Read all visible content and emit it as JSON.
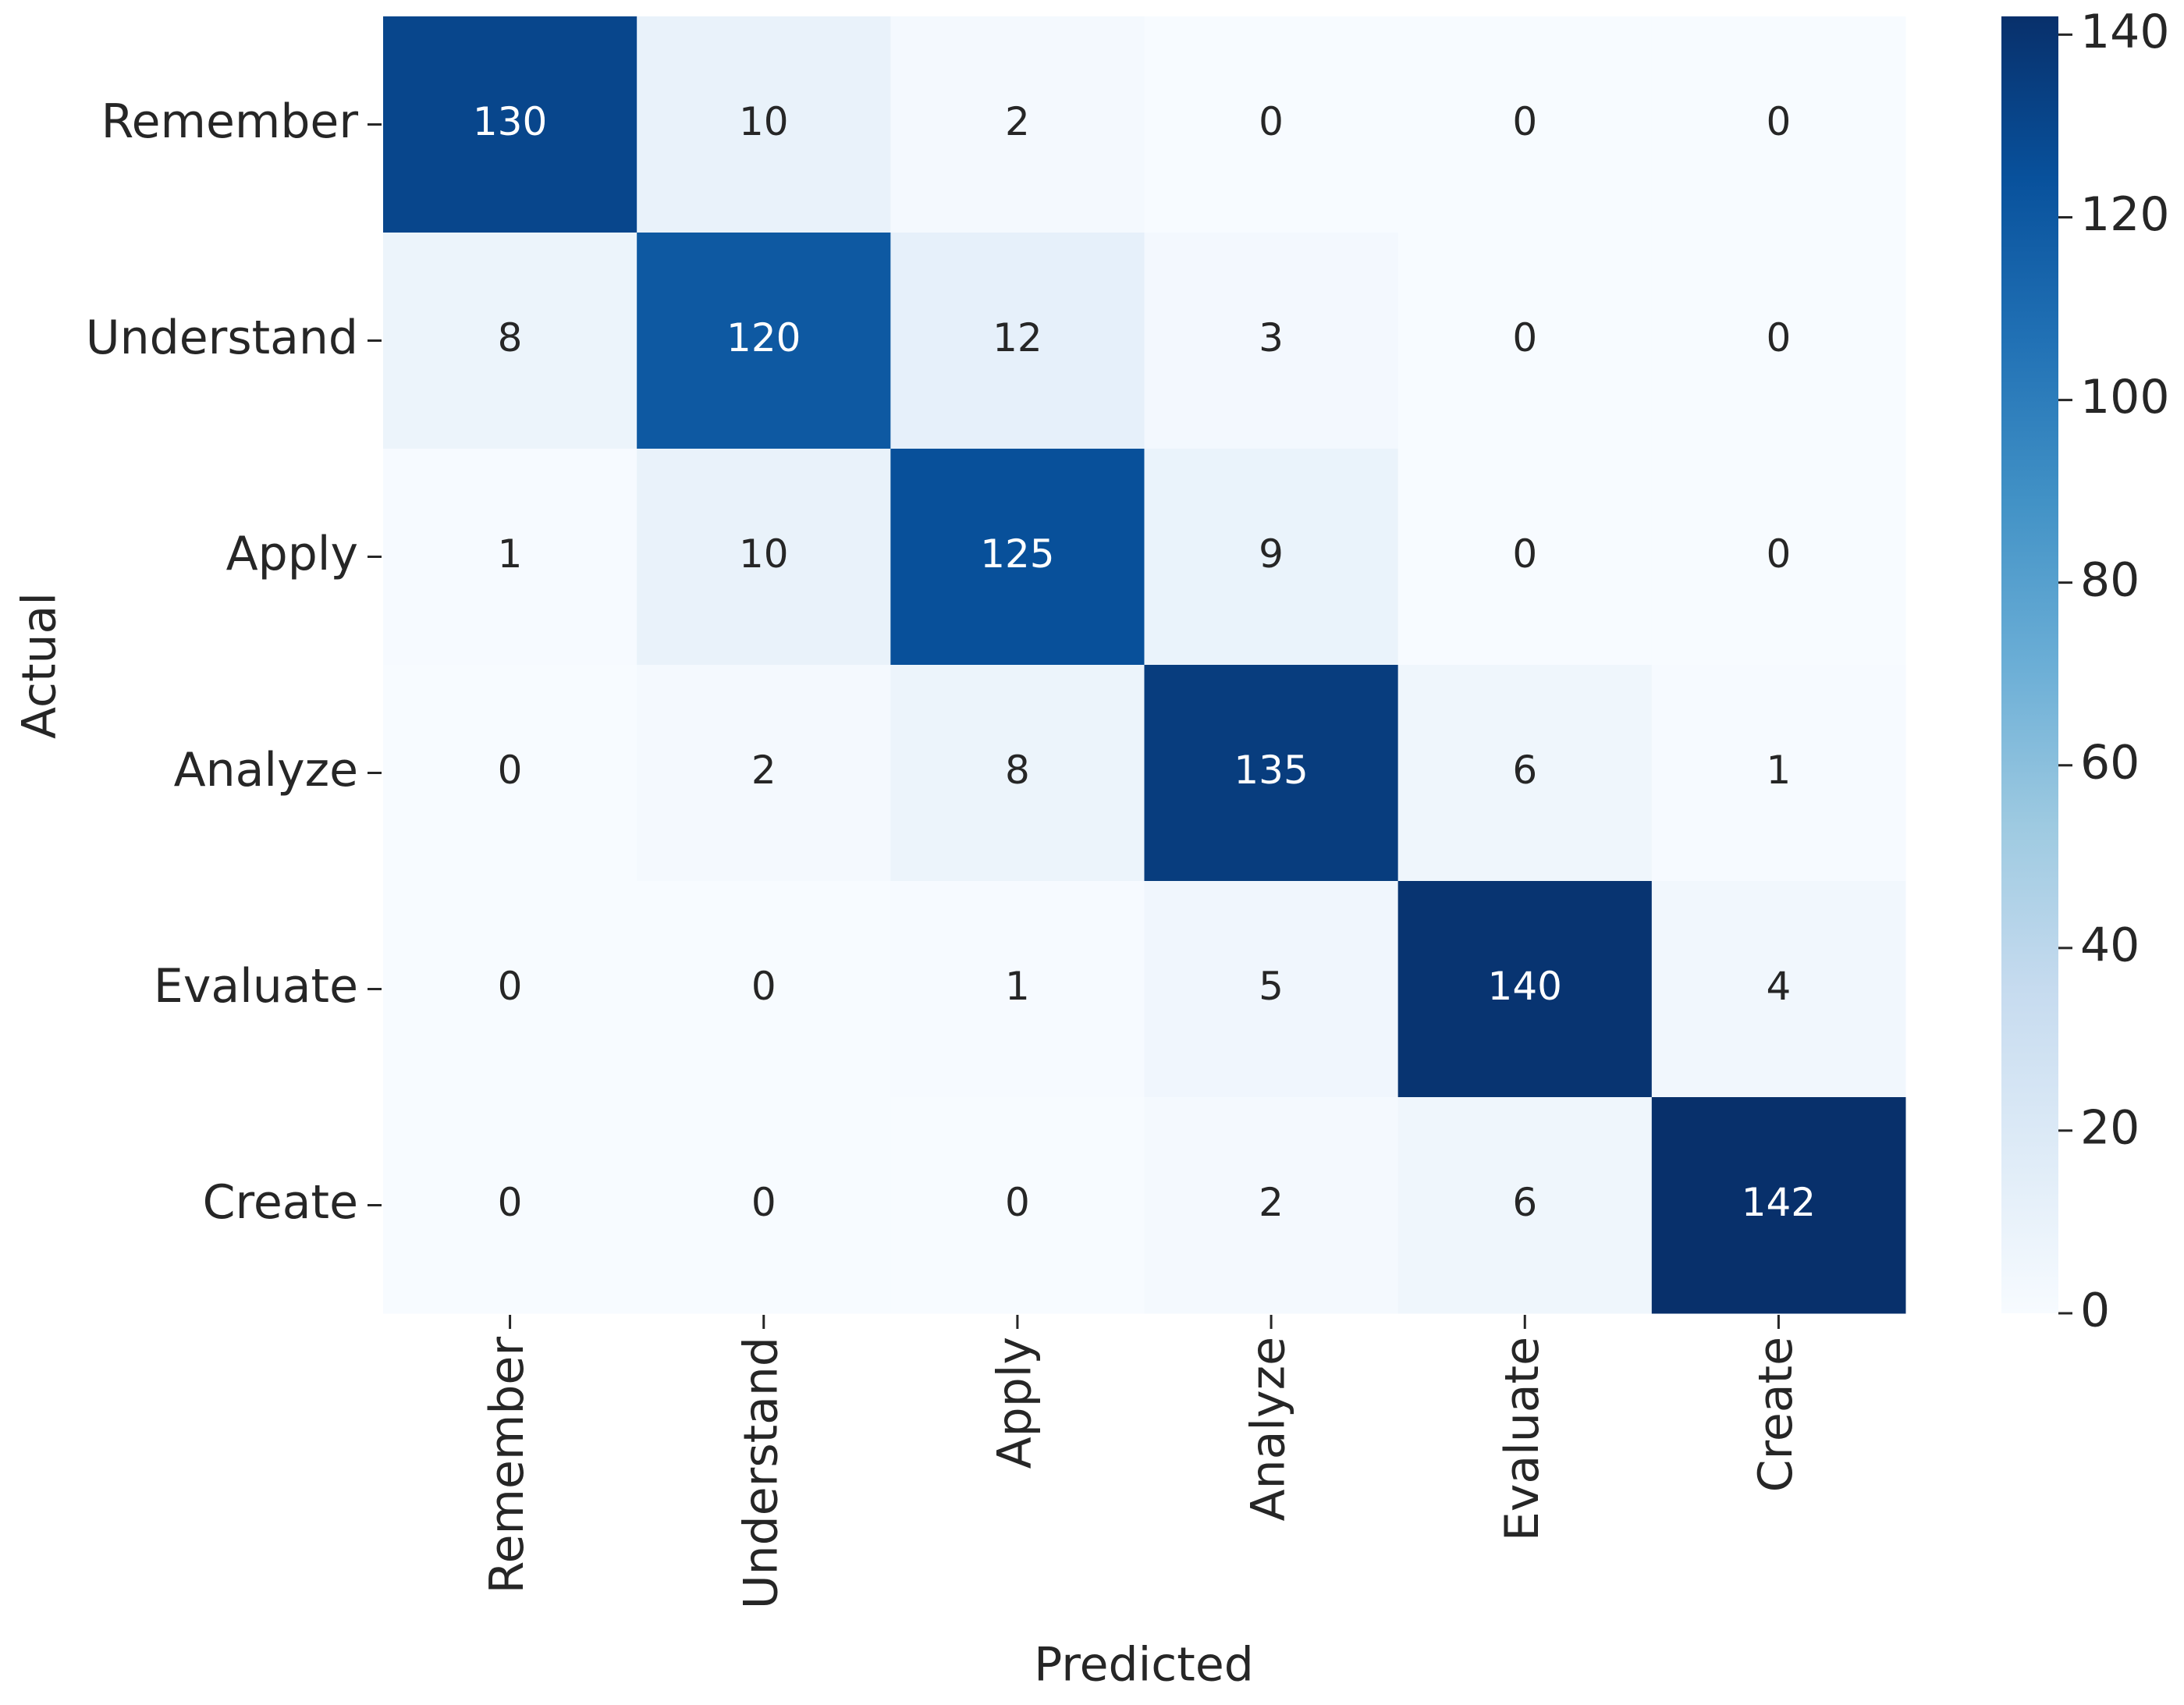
{
  "chart_data": {
    "type": "heatmap",
    "x_label": "Predicted",
    "y_label": "Actual",
    "x_categories": [
      "Remember",
      "Understand",
      "Apply",
      "Analyze",
      "Evaluate",
      "Create"
    ],
    "y_categories": [
      "Remember",
      "Understand",
      "Apply",
      "Analyze",
      "Evaluate",
      "Create"
    ],
    "values": [
      [
        130,
        10,
        2,
        0,
        0,
        0
      ],
      [
        8,
        120,
        12,
        3,
        0,
        0
      ],
      [
        1,
        10,
        125,
        9,
        0,
        0
      ],
      [
        0,
        2,
        8,
        135,
        6,
        1
      ],
      [
        0,
        0,
        1,
        5,
        140,
        4
      ],
      [
        0,
        0,
        0,
        2,
        6,
        142
      ]
    ],
    "colormap": [
      "#f7fbff",
      "#deebf7",
      "#c6dbef",
      "#9ecae1",
      "#6baed6",
      "#4292c6",
      "#2171b5",
      "#08519c",
      "#08306b"
    ],
    "clim": [
      0,
      142
    ],
    "cticks": [
      0,
      20,
      40,
      60,
      80,
      100,
      120,
      140
    ]
  }
}
